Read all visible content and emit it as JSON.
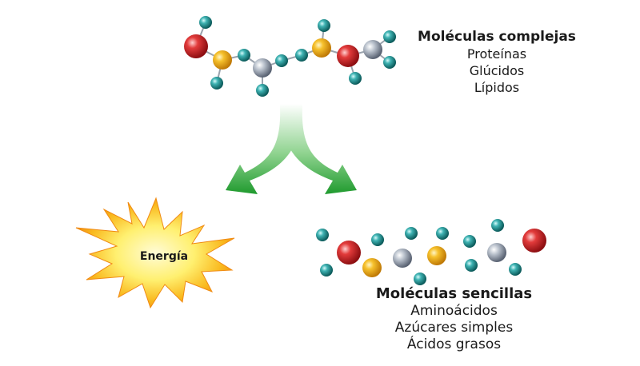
{
  "complex": {
    "title": "Moléculas complejas",
    "items": [
      "Proteínas",
      "Glúcidos",
      "Lípidos"
    ]
  },
  "simple": {
    "title": "Moléculas sencillas",
    "items": [
      "Aminoácidos",
      "Azúcares simples",
      "Ácidos grasos"
    ]
  },
  "energy": {
    "label": "Energía"
  },
  "colors": {
    "hydrogen": "#1f8d8d",
    "oxygen": "#d42a2a",
    "carbon": "#f2b81e",
    "nitrogen": "#a8b0bc",
    "arrow": "#1f9a2e",
    "sun_outer": "#f6a11a",
    "sun_inner": "#fff6b0"
  }
}
